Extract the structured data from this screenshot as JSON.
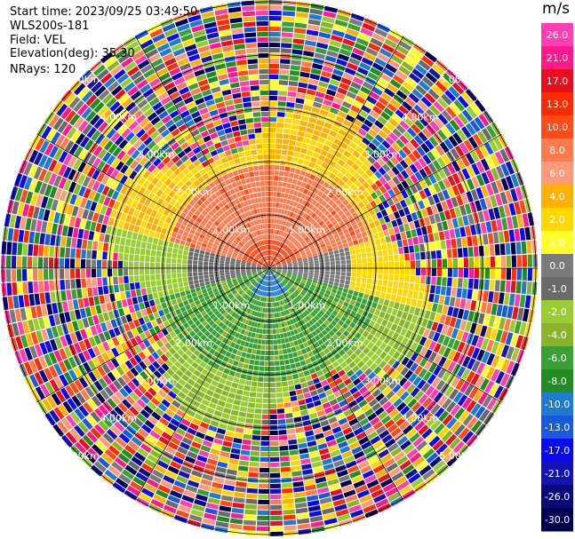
{
  "header": {
    "start_time": "Start time: 2023/09/25 03:49:50",
    "site": "WLS200s-181",
    "field": "Field: VEL",
    "elevation": "Elevation(deg): 35.30",
    "nrays": "NRays: 120"
  },
  "chart_data": {
    "type": "ppi-heatmap",
    "field": "VEL",
    "units": "m/s",
    "n_rays": 120,
    "max_range_km": 5.0,
    "range_ring_labels": [
      "1.00km",
      "2.00km",
      "3.00km",
      "4.00km",
      "5.00km"
    ],
    "colorbar": {
      "tick_labels": [
        "26.0",
        "21.0",
        "17.0",
        "13.0",
        "10.0",
        "8.0",
        "6.0",
        "4.0",
        "2.0",
        "1.0",
        "0.0",
        "-1.0",
        "-2.0",
        "-4.0",
        "-6.0",
        "-8.0",
        "-10.0",
        "-13.0",
        "-17.0",
        "-21.0",
        "-26.0",
        "-30.0"
      ],
      "colors": [
        "#ff3fb0",
        "#ff1a8c",
        "#e8101e",
        "#ff2a00",
        "#ff4a1a",
        "#ff7b4f",
        "#ff9a7a",
        "#ffb000",
        "#ffd800",
        "#ffff2a",
        "#7a7a7a",
        "#6a6a6a",
        "#9acd32",
        "#8ab52a",
        "#3aa034",
        "#228b22",
        "#1e7bd0",
        "#1a5ad8",
        "#0a0af0",
        "#1414b4",
        "#0a0a7a",
        "#000050"
      ]
    },
    "pattern": [
      {
        "range_km": [
          0.0,
          0.6
        ],
        "sector": "north",
        "value": 10
      },
      {
        "range_km": [
          0.6,
          2.2
        ],
        "sector": "north",
        "value": 8
      },
      {
        "range_km": [
          2.2,
          3.0
        ],
        "sector": "north",
        "value": 2
      },
      {
        "range_km": [
          0.0,
          2.0
        ],
        "sector": "east",
        "value": 0
      },
      {
        "range_km": [
          0.0,
          2.0
        ],
        "sector": "west",
        "value": -1
      },
      {
        "range_km": [
          0.0,
          0.5
        ],
        "sector": "south",
        "value": -10
      },
      {
        "range_km": [
          0.5,
          3.0
        ],
        "sector": "south",
        "value": -6
      },
      {
        "range_km": [
          3.0,
          5.5
        ],
        "sector": "all",
        "value": "noise"
      }
    ]
  }
}
